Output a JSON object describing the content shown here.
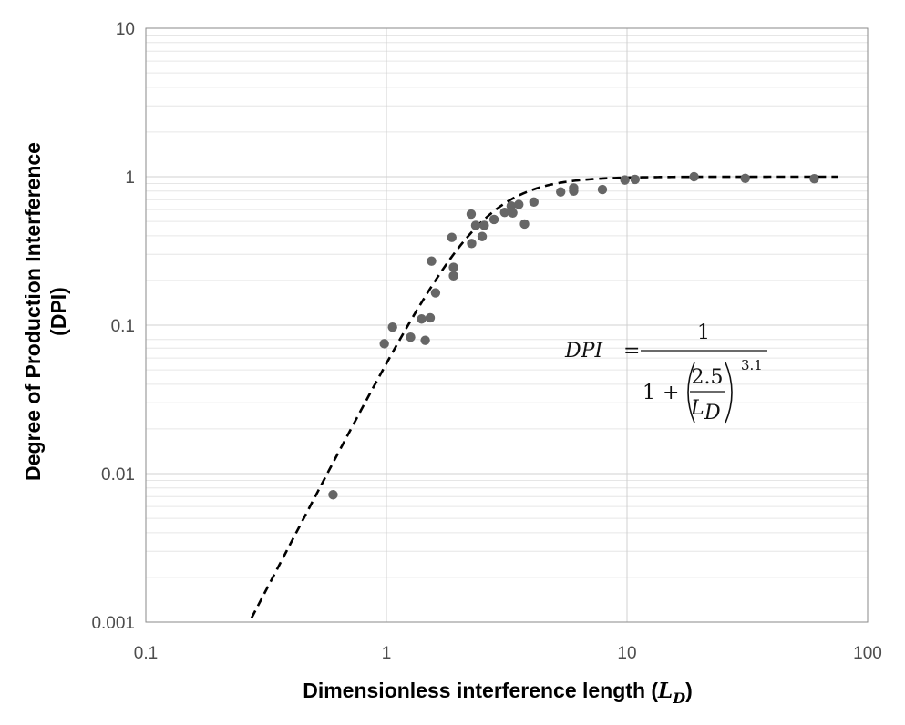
{
  "chart_data": {
    "type": "scatter",
    "x_scale": "log",
    "y_scale": "log",
    "xlim": [
      0.1,
      100
    ],
    "ylim": [
      0.001,
      10
    ],
    "grid": true,
    "xlabel": "Dimensionless interference length (",
    "xlabel_symbol": "L",
    "xlabel_subscript": "D",
    "xlabel_close": ")",
    "ylabel_line1": "Degree of Production Interference",
    "ylabel_line2": "(DPI)",
    "x_tick_labels": [
      "0.1",
      "1",
      "10",
      "100"
    ],
    "y_tick_labels": [
      "0.001",
      "0.01",
      "0.1",
      "1",
      "10"
    ],
    "x_ticks": [
      0.1,
      1,
      10,
      100
    ],
    "y_ticks": [
      0.001,
      0.01,
      0.1,
      1,
      10
    ],
    "colors": {
      "points": "#666666",
      "curve": "#000000",
      "major_grid": "#d0d0d0",
      "minor_grid": "#e6e6e6"
    },
    "equation": {
      "lhs": "DPI",
      "equals": "=",
      "numerator": "1",
      "den_one": "1",
      "den_plus": "+",
      "inner_num": "2.5",
      "inner_den_symbol": "L",
      "inner_den_subscript": "D",
      "exponent": "3.1"
    },
    "fit": {
      "a": 2.5,
      "n": 3.1,
      "x_range": [
        0.275,
        75
      ]
    },
    "points": [
      {
        "x": 0.6,
        "y": 0.0072
      },
      {
        "x": 0.98,
        "y": 0.075
      },
      {
        "x": 1.06,
        "y": 0.097
      },
      {
        "x": 1.26,
        "y": 0.083
      },
      {
        "x": 1.4,
        "y": 0.11
      },
      {
        "x": 1.45,
        "y": 0.079
      },
      {
        "x": 1.52,
        "y": 0.112
      },
      {
        "x": 1.54,
        "y": 0.27
      },
      {
        "x": 1.6,
        "y": 0.165
      },
      {
        "x": 1.87,
        "y": 0.39
      },
      {
        "x": 1.9,
        "y": 0.245
      },
      {
        "x": 1.9,
        "y": 0.215
      },
      {
        "x": 2.25,
        "y": 0.56
      },
      {
        "x": 2.26,
        "y": 0.355
      },
      {
        "x": 2.35,
        "y": 0.47
      },
      {
        "x": 2.5,
        "y": 0.395
      },
      {
        "x": 2.55,
        "y": 0.47
      },
      {
        "x": 2.8,
        "y": 0.515
      },
      {
        "x": 3.1,
        "y": 0.575
      },
      {
        "x": 3.3,
        "y": 0.635
      },
      {
        "x": 3.35,
        "y": 0.57
      },
      {
        "x": 3.55,
        "y": 0.65
      },
      {
        "x": 3.75,
        "y": 0.48
      },
      {
        "x": 4.1,
        "y": 0.675
      },
      {
        "x": 5.3,
        "y": 0.79
      },
      {
        "x": 6.0,
        "y": 0.8
      },
      {
        "x": 6.0,
        "y": 0.84
      },
      {
        "x": 7.9,
        "y": 0.82
      },
      {
        "x": 9.8,
        "y": 0.95
      },
      {
        "x": 10.8,
        "y": 0.96
      },
      {
        "x": 19.0,
        "y": 1.0
      },
      {
        "x": 31.0,
        "y": 0.975
      },
      {
        "x": 60.0,
        "y": 0.97
      }
    ]
  }
}
